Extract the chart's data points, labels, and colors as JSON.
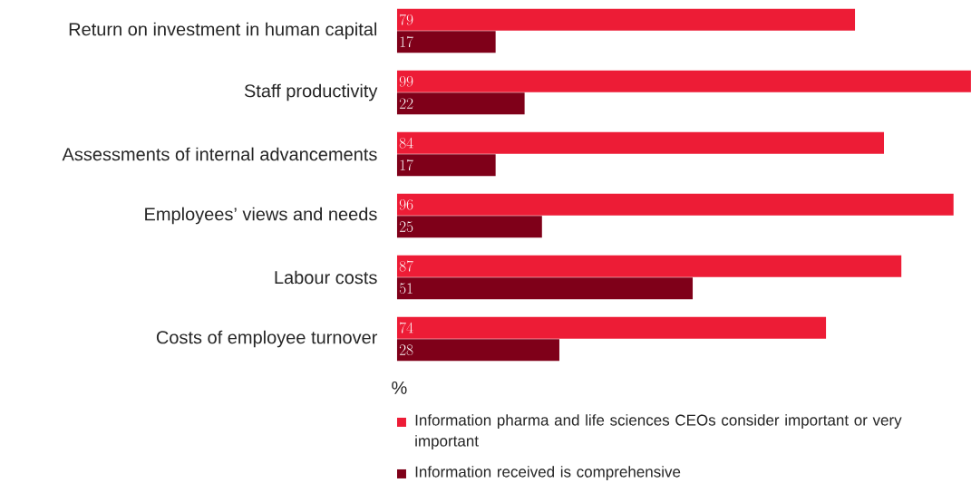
{
  "chart_data": {
    "type": "bar",
    "orientation": "horizontal",
    "xlabel": "%",
    "categories": [
      "Return on investment in human capital",
      "Staff productivity",
      "Assessments of internal advancements",
      "Employees’ views and needs",
      "Labour costs",
      "Costs of employee turnover"
    ],
    "series": [
      {
        "name": "Information pharma and life sciences CEOs consider important or very important",
        "color": "#ed1c36",
        "values": [
          79,
          99,
          84,
          96,
          87,
          74
        ]
      },
      {
        "name": "Information received is comprehensive",
        "color": "#7f0019",
        "values": [
          17,
          22,
          17,
          25,
          51,
          28
        ]
      }
    ],
    "data_labels": true,
    "legend": "bottom"
  }
}
